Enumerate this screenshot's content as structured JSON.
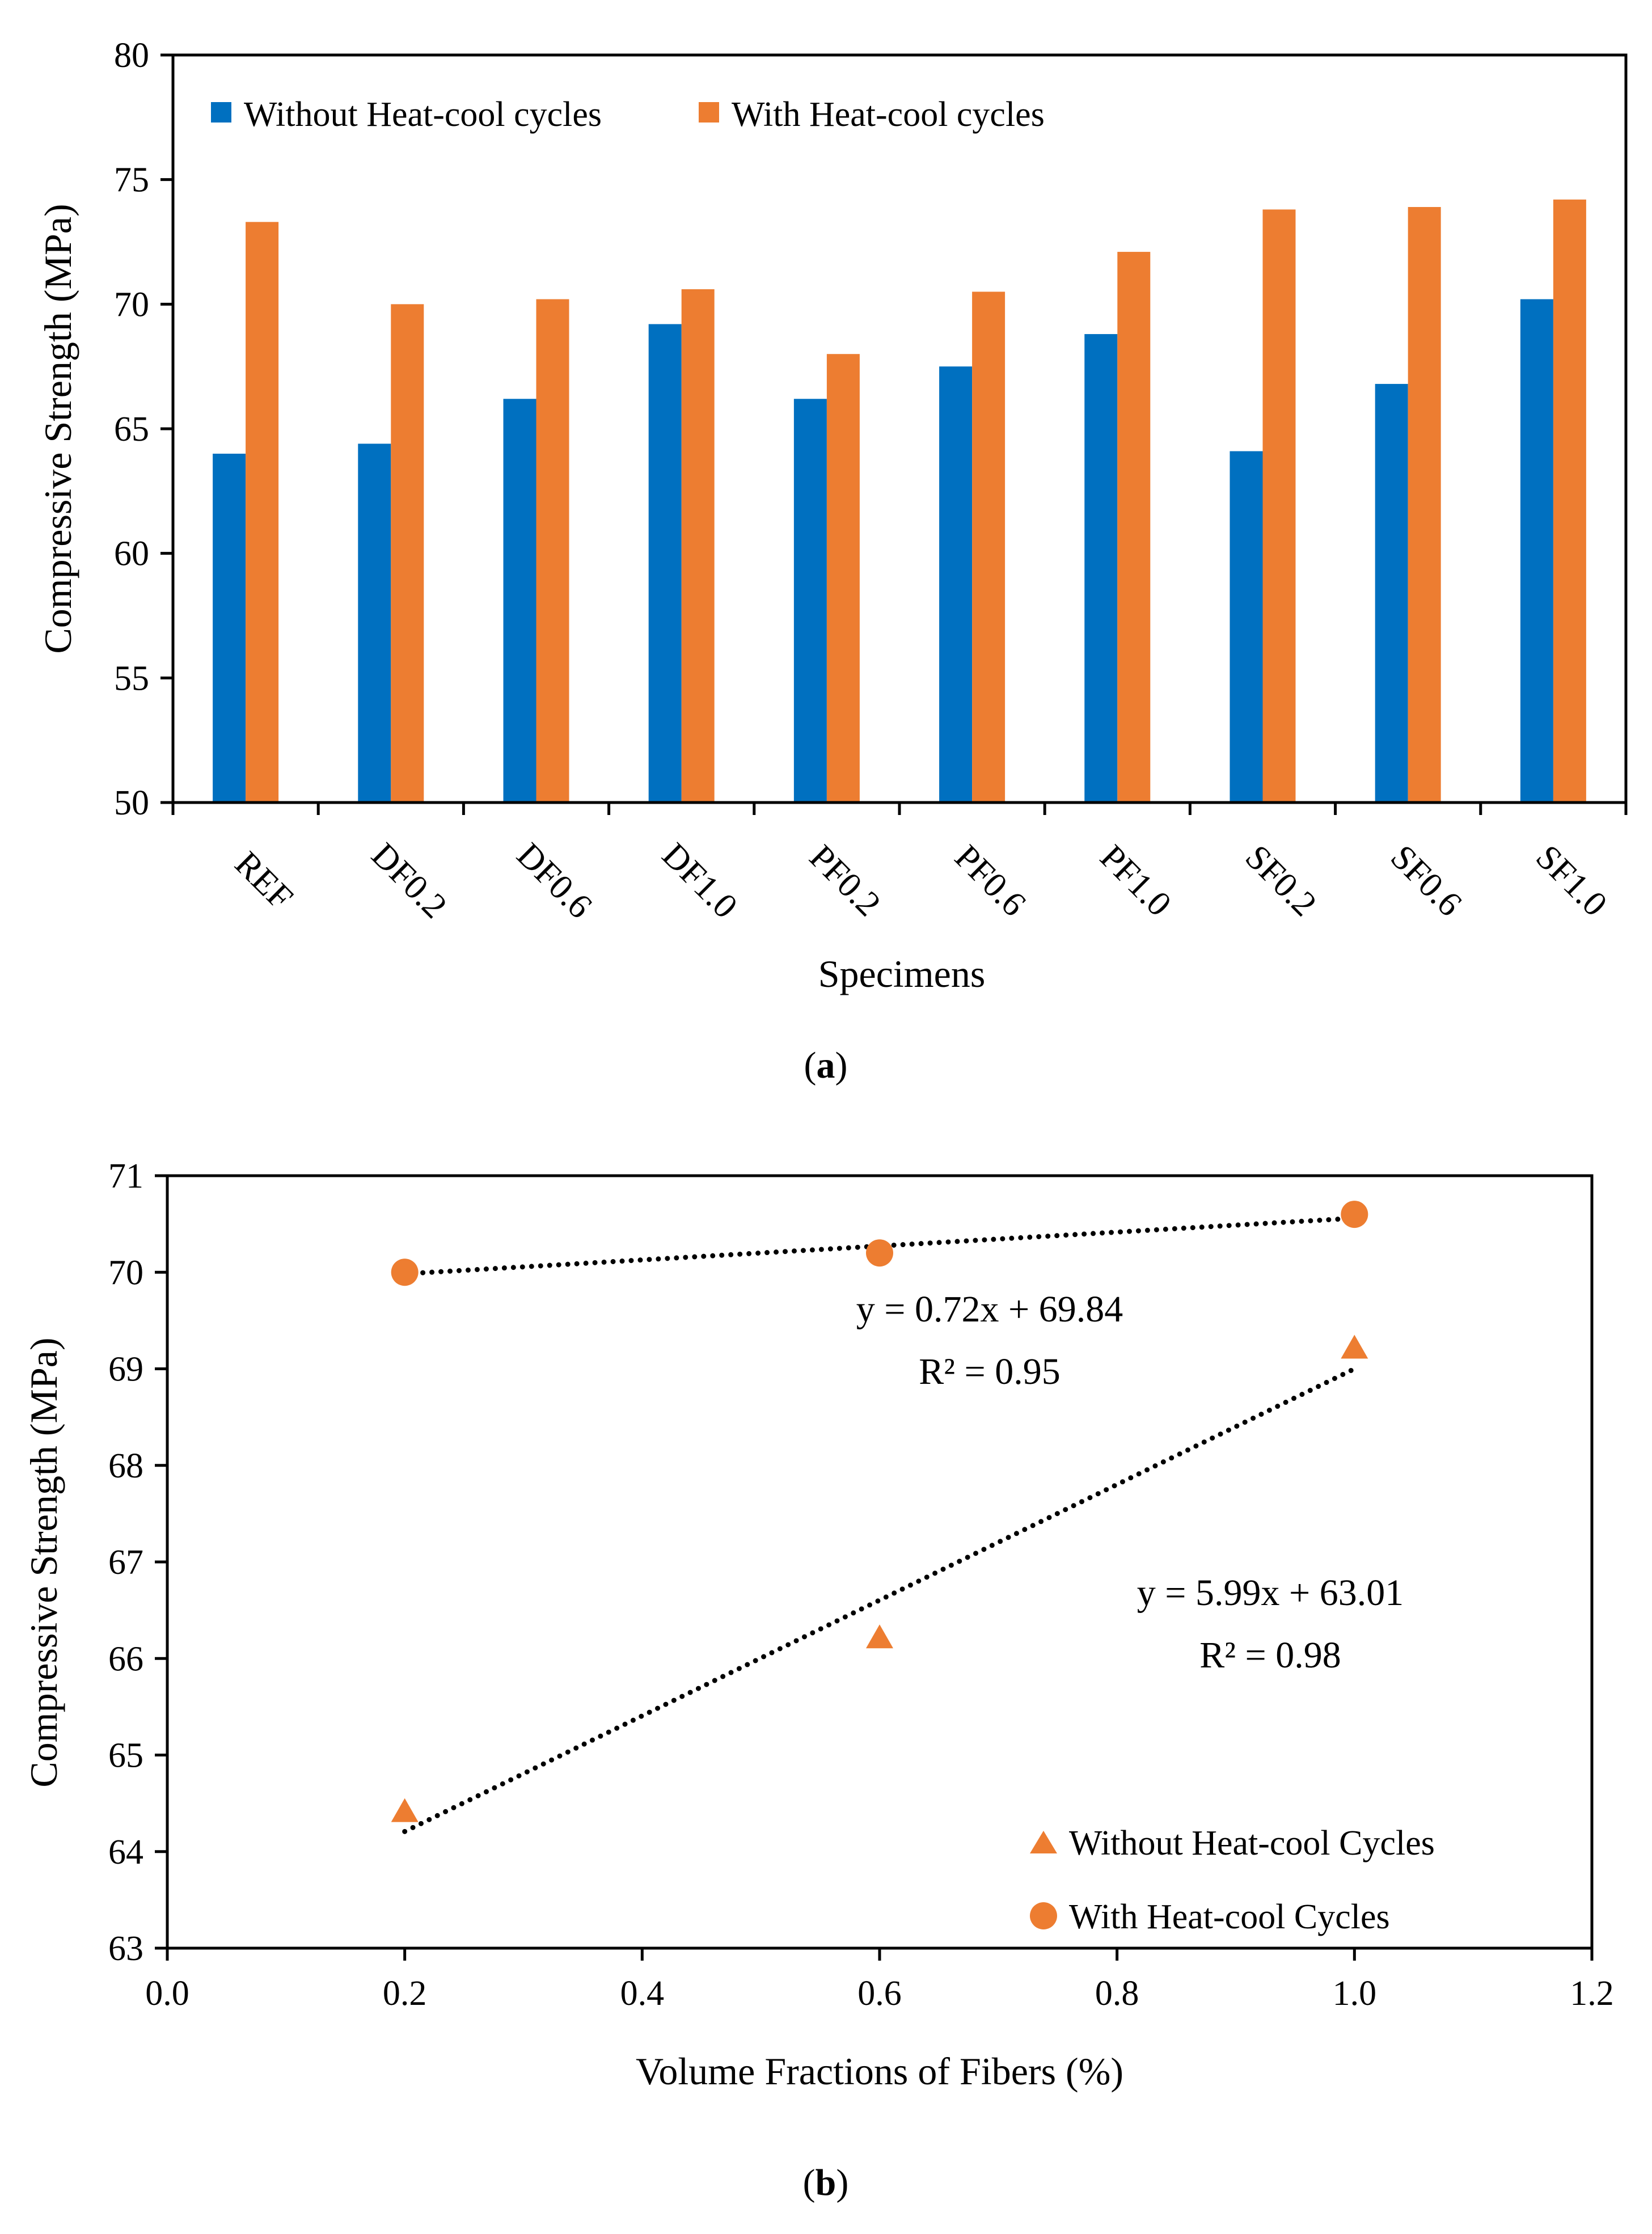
{
  "chart_data": [
    {
      "type": "bar",
      "title": "",
      "xlabel": "Specimens",
      "ylabel": "Compressive Strength (MPa)",
      "ylim": [
        50,
        80
      ],
      "yticks": [
        "50",
        "55",
        "60",
        "65",
        "70",
        "75",
        "80"
      ],
      "categories": [
        "REF",
        "DF0.2",
        "DF0.6",
        "DF1.0",
        "PF0.2",
        "PF0.6",
        "PF1.0",
        "SF0.2",
        "SF0.6",
        "SF1.0"
      ],
      "series": [
        {
          "name": "Without Heat-cool cycles",
          "color": "#0070c0",
          "values": [
            64.0,
            64.4,
            66.2,
            69.2,
            66.2,
            67.5,
            68.8,
            64.1,
            66.8,
            70.2
          ]
        },
        {
          "name": "With Heat-cool cycles",
          "color": "#ed7d31",
          "values": [
            73.3,
            70.0,
            70.2,
            70.6,
            68.0,
            70.5,
            72.1,
            73.8,
            73.9,
            74.2
          ]
        }
      ],
      "legend_position": "top-left",
      "caption": {
        "open": "(",
        "letter": "a",
        "close": ")"
      }
    },
    {
      "type": "scatter",
      "title": "",
      "xlabel": "Volume Fractions of Fibers (%)",
      "ylabel": "Compressive Strength (MPa)",
      "xlim": [
        0.0,
        1.2
      ],
      "ylim": [
        63,
        71
      ],
      "xticks": [
        "0.0",
        "0.2",
        "0.4",
        "0.6",
        "0.8",
        "1.0",
        "1.2"
      ],
      "yticks": [
        "63",
        "64",
        "65",
        "66",
        "67",
        "68",
        "69",
        "70",
        "71"
      ],
      "series": [
        {
          "name": "Without Heat-cool Cycles",
          "marker": "triangle",
          "color": "#ed7d31",
          "x": [
            0.2,
            0.6,
            1.0
          ],
          "y": [
            64.4,
            66.2,
            69.2
          ],
          "trendline": {
            "slope": 5.99,
            "intercept": 63.01
          },
          "equation": "y = 5.99x + 63.01",
          "r2": "R² = 0.98"
        },
        {
          "name": "With Heat-cool Cycles",
          "marker": "circle",
          "color": "#ed7d31",
          "x": [
            0.2,
            0.6,
            1.0
          ],
          "y": [
            70.0,
            70.2,
            70.6
          ],
          "trendline": {
            "slope": 0.72,
            "intercept": 69.84
          },
          "equation": "y = 0.72x + 69.84",
          "r2": "R² = 0.95"
        }
      ],
      "legend_position": "bottom-right",
      "caption": {
        "open": "(",
        "letter": "b",
        "close": ")"
      }
    }
  ]
}
